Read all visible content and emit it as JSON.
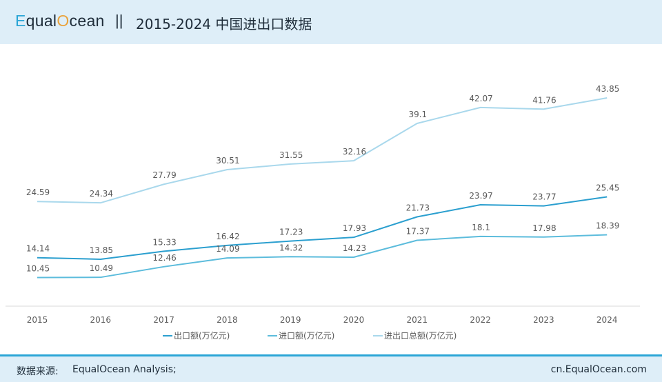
{
  "header": {
    "brand": {
      "part1": "E",
      "part2": "qual",
      "part3": "O",
      "part4": "cean"
    },
    "separator": "||",
    "title": "2015-2024 中国进出口数据"
  },
  "footer": {
    "source_label": "数据来源:",
    "source_value": "EqualOcean Analysis;",
    "site": "cn.EqualOcean.com"
  },
  "chart_data": {
    "type": "line",
    "title": "2015-2024 中国进出口数据",
    "categories": [
      "2015",
      "2016",
      "2017",
      "2018",
      "2019",
      "2020",
      "2021",
      "2022",
      "2023",
      "2024"
    ],
    "ylim": [
      0,
      50
    ],
    "grid": false,
    "legend_position": "bottom",
    "series": [
      {
        "name": "出口额(万亿元)",
        "color": "#2b9fcf",
        "values": [
          14.14,
          13.85,
          15.33,
          16.42,
          17.23,
          17.93,
          21.73,
          23.97,
          23.77,
          25.45
        ]
      },
      {
        "name": "进口额(万亿元)",
        "color": "#5cbcdc",
        "values": [
          10.45,
          10.49,
          12.46,
          14.09,
          14.32,
          14.23,
          17.37,
          18.1,
          17.98,
          18.39
        ]
      },
      {
        "name": "进出口总额(万亿元)",
        "color": "#a9d8ec",
        "values": [
          24.59,
          24.34,
          27.79,
          30.51,
          31.55,
          32.16,
          39.1,
          42.07,
          41.76,
          43.85
        ]
      }
    ]
  }
}
